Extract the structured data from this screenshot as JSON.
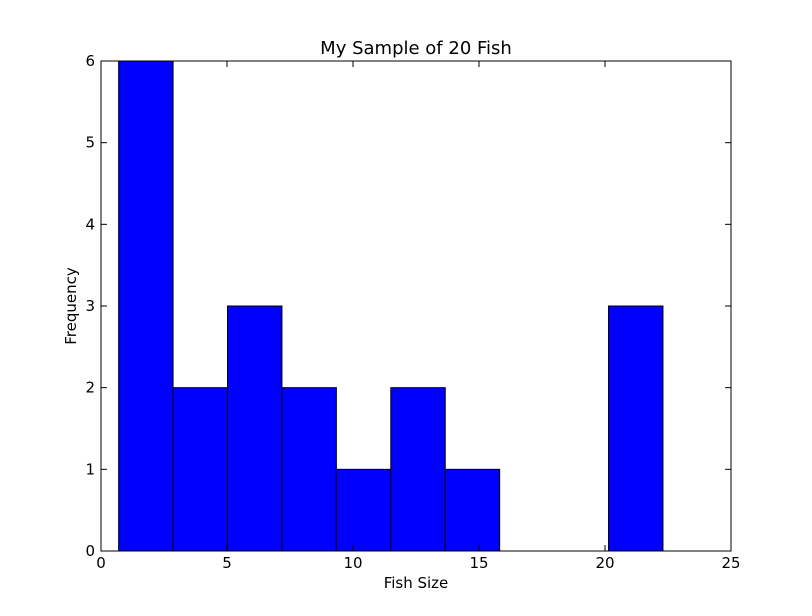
{
  "chart_data": {
    "type": "histogram",
    "title": "My Sample of 20 Fish",
    "x_label": "Fish Size",
    "y_label": "Frequency",
    "bins": [
      0.7,
      2.86,
      5.02,
      7.18,
      9.34,
      11.5,
      13.66,
      15.82,
      17.98,
      20.14,
      22.3
    ],
    "values": [
      6,
      2,
      3,
      2,
      1,
      2,
      1,
      0,
      0,
      3
    ],
    "color": "#0000ff",
    "xlim": [
      0,
      25
    ],
    "xticks": [
      0,
      5,
      10,
      15,
      20,
      25
    ],
    "ylim": [
      0,
      6
    ],
    "yticks": [
      0,
      1,
      2,
      3,
      4,
      5,
      6
    ],
    "grid": false
  }
}
